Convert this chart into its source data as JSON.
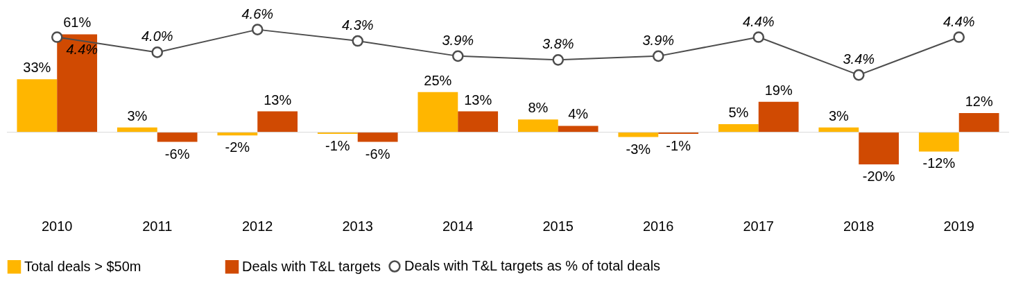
{
  "chart_data": {
    "type": "bar",
    "legend": "bottom",
    "categories": [
      "2010",
      "2011",
      "2012",
      "2013",
      "2014",
      "2015",
      "2016",
      "2017",
      "2018",
      "2019"
    ],
    "series": [
      {
        "name": "Total deals > $50m",
        "color": "#ffb600",
        "values": [
          33,
          3,
          -2,
          -1,
          25,
          8,
          -3,
          5,
          3,
          -12
        ],
        "value_labels": [
          "33%",
          "3%",
          "-2%",
          "-1%",
          "25%",
          "8%",
          "-3%",
          "5%",
          "3%",
          "-12%"
        ]
      },
      {
        "name": "Deals with T&L targets",
        "color": "#d04a02",
        "values": [
          61,
          -6,
          13,
          -6,
          13,
          4,
          -1,
          19,
          -20,
          12
        ],
        "value_labels": [
          "61%",
          "-6%",
          "13%",
          "-6%",
          "13%",
          "4%",
          "-1%",
          "19%",
          "-20%",
          "12%"
        ]
      },
      {
        "name": "Deals with T&L targets as % of total deals",
        "type": "line",
        "axis": "y2",
        "marker": "circle",
        "color": "#4d4d4d",
        "values": [
          4.4,
          4.0,
          4.6,
          4.3,
          3.9,
          3.8,
          3.9,
          4.4,
          3.4,
          4.4
        ],
        "value_labels": [
          "4.4%",
          "4.0%",
          "4.6%",
          "4.3%",
          "3.9%",
          "3.8%",
          "3.9%",
          "4.4%",
          "3.4%",
          "4.4%"
        ]
      }
    ]
  }
}
